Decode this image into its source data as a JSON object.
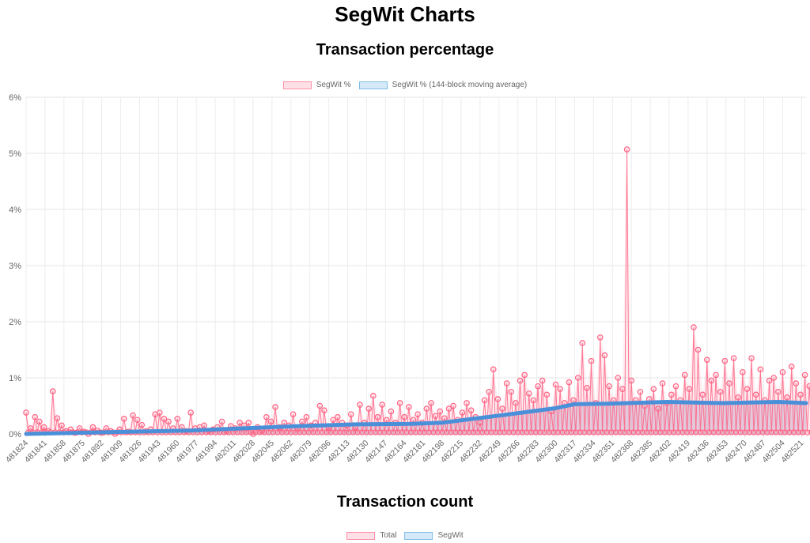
{
  "page": {
    "title": "SegWit Charts"
  },
  "chart_data": [
    {
      "type": "line",
      "title": "Transaction percentage",
      "xlabel": "",
      "ylabel": "",
      "ylim": [
        0,
        6
      ],
      "yticks": [
        "0%",
        "1%",
        "2%",
        "3%",
        "4%",
        "5%",
        "6%"
      ],
      "grid": true,
      "legend_position": "top",
      "x_range": [
        481824,
        482525
      ],
      "xticks": [
        "481824",
        "481841",
        "481858",
        "481875",
        "481892",
        "481909",
        "481926",
        "481943",
        "481960",
        "481977",
        "481994",
        "482011",
        "482028",
        "482045",
        "482062",
        "482079",
        "482096",
        "482113",
        "482130",
        "482147",
        "482164",
        "482181",
        "482198",
        "482215",
        "482232",
        "482249",
        "482266",
        "482283",
        "482300",
        "482317",
        "482334",
        "482351",
        "482368",
        "482385",
        "482402",
        "482419",
        "482436",
        "482453",
        "482470",
        "482487",
        "482504",
        "482521"
      ],
      "series": [
        {
          "name": "SegWit %",
          "color": "#ff6384",
          "fill": "#ffe0e6",
          "x_step": 4,
          "x_start": 481824,
          "values": [
            0.38,
            0.1,
            0.3,
            0.22,
            0.12,
            0.05,
            0.76,
            0.28,
            0.15,
            0.05,
            0.08,
            0.02,
            0.1,
            0.04,
            0.0,
            0.12,
            0.06,
            0.02,
            0.1,
            0.05,
            0.0,
            0.08,
            0.27,
            0.04,
            0.33,
            0.25,
            0.16,
            0.05,
            0.08,
            0.35,
            0.38,
            0.27,
            0.22,
            0.1,
            0.27,
            0.12,
            0.05,
            0.38,
            0.1,
            0.12,
            0.15,
            0.05,
            0.08,
            0.12,
            0.22,
            0.05,
            0.14,
            0.1,
            0.2,
            0.15,
            0.2,
            0.0,
            0.12,
            0.05,
            0.3,
            0.22,
            0.48,
            0.12,
            0.2,
            0.15,
            0.35,
            0.1,
            0.22,
            0.3,
            0.15,
            0.2,
            0.5,
            0.42,
            0.12,
            0.25,
            0.3,
            0.2,
            0.15,
            0.35,
            0.12,
            0.52,
            0.2,
            0.45,
            0.68,
            0.3,
            0.52,
            0.25,
            0.4,
            0.2,
            0.55,
            0.3,
            0.48,
            0.25,
            0.35,
            0.2,
            0.45,
            0.55,
            0.32,
            0.4,
            0.28,
            0.45,
            0.5,
            0.25,
            0.38,
            0.55,
            0.42,
            0.3,
            0.2,
            0.6,
            0.75,
            1.15,
            0.62,
            0.45,
            0.9,
            0.75,
            0.55,
            0.95,
            1.05,
            0.72,
            0.6,
            0.85,
            0.95,
            0.7,
            0.4,
            0.88,
            0.8,
            0.55,
            0.92,
            0.6,
            1.0,
            1.62,
            0.82,
            1.3,
            0.55,
            1.72,
            1.4,
            0.85,
            0.6,
            1.0,
            0.8,
            5.07,
            0.95,
            0.6,
            0.75,
            0.5,
            0.62,
            0.8,
            0.45,
            0.9,
            0.55,
            0.7,
            0.85,
            0.6,
            1.05,
            0.8,
            1.9,
            1.5,
            0.7,
            1.32,
            0.95,
            1.05,
            0.75,
            1.3,
            0.9,
            1.35,
            0.65,
            1.1,
            0.8,
            1.35,
            0.7,
            1.15,
            0.6,
            0.95,
            1.0,
            0.75,
            1.1,
            0.65,
            1.2,
            0.9,
            0.7,
            1.05,
            0.85,
            1.1,
            0.5,
            0.75,
            0.45
          ],
          "min_values_shown": 0.0
        },
        {
          "name": "SegWit % (144-block moving average)",
          "color": "#4a90d9",
          "fill": "#d6e9f8",
          "x": [
            481824,
            481870,
            481920,
            481970,
            482020,
            482070,
            482120,
            482170,
            482198,
            482230,
            482270,
            482300,
            482317,
            482350,
            482400,
            482450,
            482500,
            482525
          ],
          "values": [
            0.0,
            0.02,
            0.04,
            0.06,
            0.1,
            0.14,
            0.17,
            0.18,
            0.2,
            0.28,
            0.38,
            0.46,
            0.53,
            0.54,
            0.57,
            0.55,
            0.57,
            0.55
          ]
        }
      ]
    },
    {
      "type": "line",
      "title": "Transaction count",
      "legend_position": "top",
      "series": [
        {
          "name": "Total",
          "color": "#ff6384",
          "fill": "#ffe0e6"
        },
        {
          "name": "SegWit",
          "color": "#36a2eb",
          "fill": "#d6e9f8"
        }
      ]
    }
  ]
}
